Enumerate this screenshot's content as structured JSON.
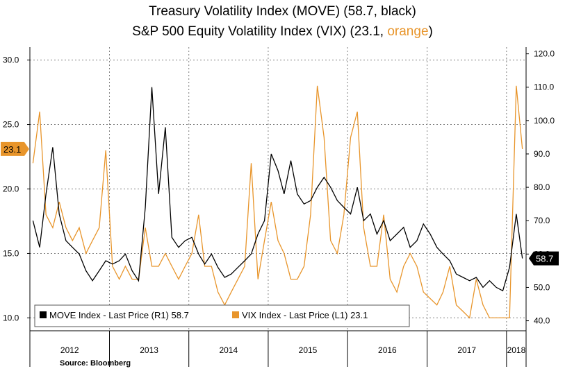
{
  "title_line1": "Treasury Volatility Index (MOVE) (58.7, black)",
  "title_line2_prefix": "S&P 500 Equity Volatility Index (VIX) (23.1, ",
  "title_line2_orange": "orange",
  "title_line2_suffix": ")",
  "source": "Source: Bloomberg",
  "colors": {
    "move": "#000000",
    "vix": "#e8952b",
    "grid": "#7f7f7f",
    "axis": "#000000"
  },
  "chart_data": {
    "type": "line",
    "x_axis": {
      "categories": [
        "2012",
        "2013",
        "2014",
        "2015",
        "2016",
        "2017",
        "2018"
      ],
      "xlim": [
        "2012-01-01",
        "2018-04-01"
      ]
    },
    "left_axis": {
      "ylim": [
        9.0,
        31.0
      ],
      "ticks": [
        "10.0",
        "15.0",
        "20.0",
        "25.0",
        "30.0"
      ]
    },
    "right_axis": {
      "ylim": [
        37.0,
        122.0
      ],
      "ticks": [
        "40.0",
        "50.0",
        "60.0",
        "70.0",
        "80.0",
        "90.0",
        "100.0",
        "110.0",
        "120.0"
      ]
    },
    "grid": true,
    "legend": {
      "placement": "bottom-left",
      "entries": [
        "MOVE Index - Last Price (R1) 58.7",
        "VIX Index - Last Price (L1) 23.1"
      ]
    },
    "last_value_labels": {
      "vix": "23.1",
      "move": "58.7"
    },
    "series": [
      {
        "name": "MOVE Index - Last Price (R1) 58.7",
        "axis": "right",
        "x": [
          "2012-01",
          "2012-02",
          "2012-03",
          "2012-04",
          "2012-05",
          "2012-06",
          "2012-07",
          "2012-08",
          "2012-09",
          "2012-10",
          "2012-11",
          "2012-12",
          "2013-01",
          "2013-02",
          "2013-03",
          "2013-04",
          "2013-05",
          "2013-06",
          "2013-07",
          "2013-08",
          "2013-09",
          "2013-10",
          "2013-11",
          "2013-12",
          "2014-01",
          "2014-02",
          "2014-03",
          "2014-04",
          "2014-05",
          "2014-06",
          "2014-07",
          "2014-08",
          "2014-09",
          "2014-10",
          "2014-11",
          "2014-12",
          "2015-01",
          "2015-02",
          "2015-03",
          "2015-04",
          "2015-05",
          "2015-06",
          "2015-07",
          "2015-08",
          "2015-09",
          "2015-10",
          "2015-11",
          "2015-12",
          "2016-01",
          "2016-02",
          "2016-03",
          "2016-04",
          "2016-05",
          "2016-06",
          "2016-07",
          "2016-08",
          "2016-09",
          "2016-10",
          "2016-11",
          "2016-12",
          "2017-01",
          "2017-02",
          "2017-03",
          "2017-04",
          "2017-05",
          "2017-06",
          "2017-07",
          "2017-08",
          "2017-09",
          "2017-10",
          "2017-11",
          "2017-12",
          "2018-01",
          "2018-02",
          "2018-03"
        ],
        "values": [
          70,
          62,
          78,
          92,
          72,
          64,
          62,
          60,
          55,
          52,
          55,
          58,
          57,
          58,
          60,
          55,
          52,
          74,
          110,
          78,
          98,
          65,
          62,
          64,
          65,
          60,
          57,
          60,
          56,
          53,
          54,
          56,
          58,
          60,
          66,
          70,
          90,
          85,
          78,
          88,
          78,
          75,
          76,
          80,
          83,
          80,
          76,
          74,
          72,
          80,
          70,
          72,
          66,
          70,
          64,
          66,
          68,
          62,
          64,
          69,
          66,
          62,
          60,
          58,
          54,
          53,
          52,
          53,
          50,
          52,
          50,
          49,
          56,
          72,
          58.7
        ]
      },
      {
        "name": "VIX Index - Last Price (L1) 23.1",
        "axis": "left",
        "x": [
          "2012-01",
          "2012-02",
          "2012-03",
          "2012-04",
          "2012-05",
          "2012-06",
          "2012-07",
          "2012-08",
          "2012-09",
          "2012-10",
          "2012-11",
          "2012-12",
          "2013-01",
          "2013-02",
          "2013-03",
          "2013-04",
          "2013-05",
          "2013-06",
          "2013-07",
          "2013-08",
          "2013-09",
          "2013-10",
          "2013-11",
          "2013-12",
          "2014-01",
          "2014-02",
          "2014-03",
          "2014-04",
          "2014-05",
          "2014-06",
          "2014-07",
          "2014-08",
          "2014-09",
          "2014-10",
          "2014-11",
          "2014-12",
          "2015-01",
          "2015-02",
          "2015-03",
          "2015-04",
          "2015-05",
          "2015-06",
          "2015-07",
          "2015-08",
          "2015-09",
          "2015-10",
          "2015-11",
          "2015-12",
          "2016-01",
          "2016-02",
          "2016-03",
          "2016-04",
          "2016-05",
          "2016-06",
          "2016-07",
          "2016-08",
          "2016-09",
          "2016-10",
          "2016-11",
          "2016-12",
          "2017-01",
          "2017-02",
          "2017-03",
          "2017-04",
          "2017-05",
          "2017-06",
          "2017-07",
          "2017-08",
          "2017-09",
          "2017-10",
          "2017-11",
          "2017-12",
          "2018-01",
          "2018-02",
          "2018-03"
        ],
        "values": [
          22,
          26,
          18,
          17,
          19,
          17,
          16,
          17,
          15,
          16,
          17,
          23,
          14,
          13,
          14,
          13,
          13,
          17,
          14,
          14,
          15,
          14,
          13,
          14,
          15,
          18,
          14,
          14,
          12,
          11,
          12,
          13,
          14,
          22,
          13,
          16,
          19,
          16,
          15,
          13,
          13,
          14,
          18,
          28,
          24,
          16,
          15,
          18,
          24,
          26,
          17,
          14,
          14,
          18,
          13,
          12,
          14,
          15,
          14,
          12,
          11.5,
          11,
          12,
          14,
          11,
          10.5,
          10,
          13,
          11,
          10,
          10,
          10,
          10,
          28,
          23.1
        ]
      }
    ]
  }
}
